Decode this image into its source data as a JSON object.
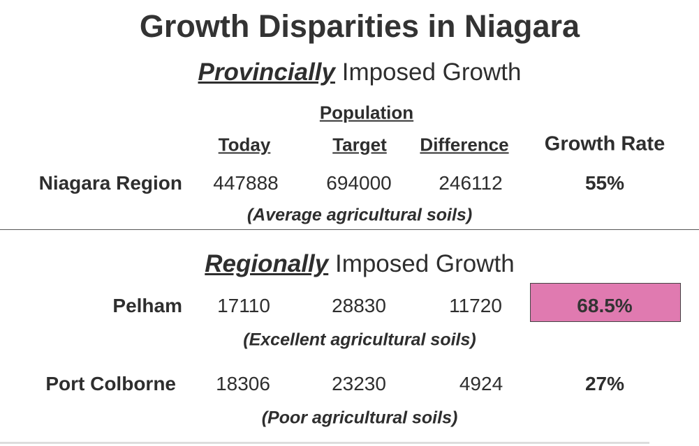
{
  "title": "Growth Disparities in Niagara",
  "provincial": {
    "emphasis": "Provincially",
    "rest": " Imposed Growth"
  },
  "population_label": "Population",
  "columns": {
    "today": "Today",
    "target": "Target",
    "difference": "Difference",
    "growth_rate": "Growth Rate"
  },
  "regional": {
    "emphasis": "Regionally",
    "rest": " Imposed Growth"
  },
  "rows": [
    {
      "name": "Niagara Region",
      "today": "447888",
      "target": "694000",
      "difference": "246112",
      "growth_rate": "55%",
      "note": "(Average agricultural soils)"
    },
    {
      "name": "Pelham",
      "today": "17110",
      "target": "28830",
      "difference": "11720",
      "growth_rate": "68.5%",
      "note": "(Excellent agricultural soils)"
    },
    {
      "name": "Port Colborne",
      "today": "18306",
      "target": "23230",
      "difference": "4924",
      "growth_rate": "27%",
      "note": "(Poor agricultural soils)"
    }
  ],
  "colors": {
    "highlight": "#e07ab0",
    "divider": "#555555"
  }
}
